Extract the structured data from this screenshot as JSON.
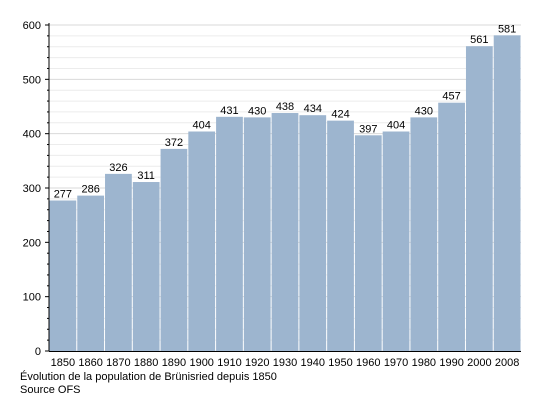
{
  "chart_data": {
    "type": "bar",
    "categories": [
      "1850",
      "1860",
      "1870",
      "1880",
      "1890",
      "1900",
      "1910",
      "1920",
      "1930",
      "1940",
      "1950",
      "1960",
      "1970",
      "1980",
      "1990",
      "2000",
      "2008"
    ],
    "values": [
      277,
      286,
      326,
      311,
      372,
      404,
      431,
      430,
      438,
      434,
      424,
      397,
      404,
      430,
      457,
      561,
      581
    ],
    "ylim": [
      0,
      600
    ],
    "yticks": [
      0,
      100,
      200,
      300,
      400,
      500,
      600
    ],
    "grid": true,
    "bar_color": "#9db5cf",
    "grid_color": "#d9d9d9"
  },
  "caption": {
    "line1": "Évolution de la population de Brünisried depuis 1850",
    "line2": "Source OFS"
  }
}
